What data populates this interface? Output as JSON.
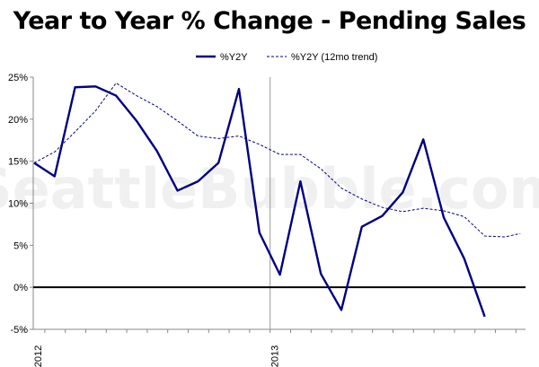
{
  "chart_data": {
    "type": "line",
    "title": "Year to Year % Change - Pending Sales",
    "xlabel": "",
    "ylabel": "",
    "watermark": "SeattleBubble.com",
    "x": [
      "2012-01",
      "2012-02",
      "2012-03",
      "2012-04",
      "2012-05",
      "2012-06",
      "2012-07",
      "2012-08",
      "2012-09",
      "2012-10",
      "2012-11",
      "2012-12",
      "2013-01",
      "2013-02",
      "2013-03",
      "2013-04",
      "2013-05",
      "2013-06",
      "2013-07",
      "2013-08",
      "2013-09",
      "2013-10",
      "2013-11",
      "2013-12"
    ],
    "x_tick_labels": [
      {
        "x": "2012-01",
        "label": "2012"
      },
      {
        "x": "2013-01",
        "label": "2013"
      }
    ],
    "ylim": [
      -5,
      25
    ],
    "y_ticks": [
      -5,
      0,
      5,
      10,
      15,
      20,
      25
    ],
    "y_tick_labels": [
      "-5%",
      "0%",
      "5%",
      "10%",
      "15%",
      "20%",
      "25%"
    ],
    "zero_line": true,
    "grid": "vertical lines at year boundaries",
    "legend_position": "top-center",
    "colors": {
      "series": "#000080",
      "zero_line": "#000000",
      "axis": "#888888"
    },
    "series": [
      {
        "name": "%Y2Y",
        "style": "solid",
        "values": [
          14.8,
          13.2,
          23.8,
          23.9,
          22.8,
          19.8,
          16.2,
          11.5,
          12.6,
          14.8,
          23.6,
          6.5,
          1.5,
          12.6,
          1.6,
          -2.7,
          7.2,
          8.5,
          11.3,
          17.6,
          8.3,
          3.4,
          -3.5,
          null
        ]
      },
      {
        "name": "%Y2Y (12mo trend)",
        "style": "dashed",
        "values": [
          14.8,
          16.1,
          18.5,
          21.0,
          24.3,
          22.8,
          21.5,
          19.8,
          18.0,
          17.7,
          18.0,
          17.0,
          15.8,
          15.8,
          14.1,
          11.8,
          10.5,
          9.5,
          9.0,
          9.4,
          9.1,
          8.4,
          6.1,
          6.0
        ]
      }
    ],
    "extra_points": [
      {
        "series": 1,
        "x_index": 24,
        "value": 6.4
      }
    ]
  }
}
